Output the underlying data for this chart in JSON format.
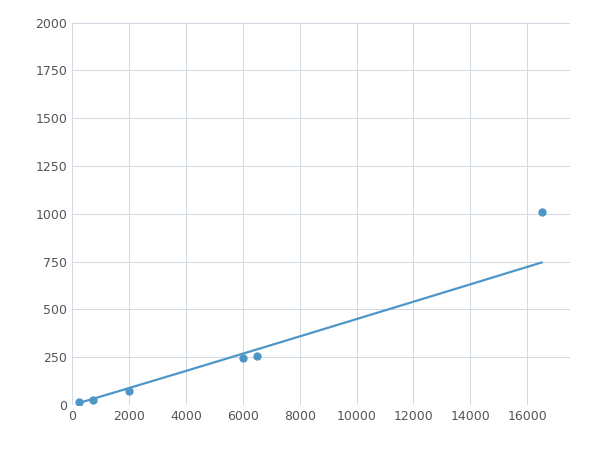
{
  "x": [
    250,
    750,
    2000,
    6000,
    6500,
    16500
  ],
  "y": [
    15,
    25,
    75,
    248,
    258,
    1010
  ],
  "line_color": "#4e96c8",
  "marker_color": "#4e96c8",
  "marker_size": 5,
  "line_width": 1.6,
  "xlim": [
    0,
    17500
  ],
  "ylim": [
    0,
    2000
  ],
  "xticks": [
    0,
    2000,
    4000,
    6000,
    8000,
    10000,
    12000,
    14000,
    16000
  ],
  "yticks": [
    0,
    250,
    500,
    750,
    1000,
    1250,
    1500,
    1750,
    2000
  ],
  "grid_color": "#d0d8e4",
  "grid_linewidth": 0.7,
  "background_color": "#ffffff",
  "figure_background": "#ffffff",
  "tick_label_color": "#555555",
  "tick_label_size": 9
}
